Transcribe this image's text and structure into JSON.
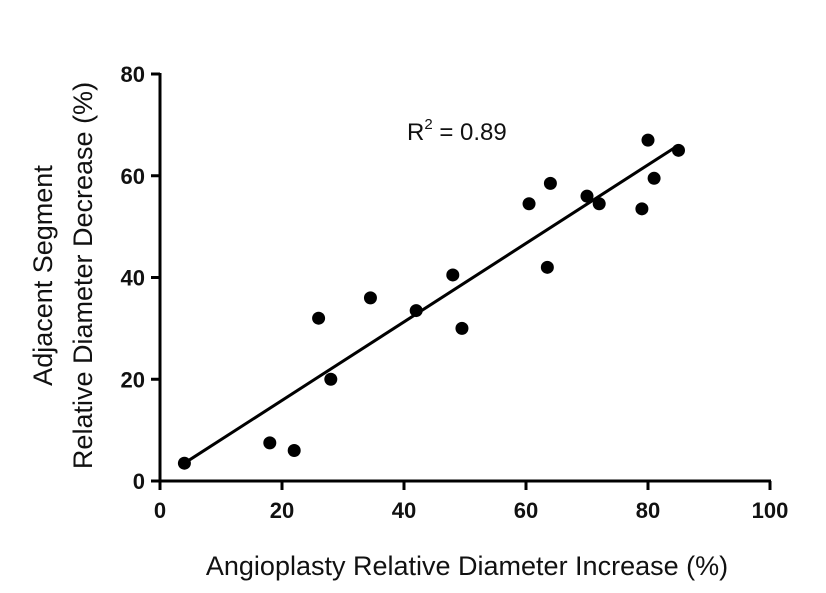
{
  "chart_data": {
    "type": "scatter",
    "title": "",
    "xlabel": "Angioplasty Relative Diameter Increase (%)",
    "ylabel": [
      "Adjacent Segment",
      "Relative Diameter Decrease (%)"
    ],
    "xlim": [
      0,
      100
    ],
    "ylim": [
      0,
      80
    ],
    "x_ticks": [
      "0",
      "20",
      "40",
      "60",
      "80",
      "100"
    ],
    "y_ticks": [
      "0",
      "20",
      "40",
      "60",
      "80"
    ],
    "grid": false,
    "annotation": {
      "base": "R",
      "superscript": "2",
      "rest": " = 0.89"
    },
    "points": [
      {
        "x": 4,
        "y": 3.5
      },
      {
        "x": 18,
        "y": 7.5
      },
      {
        "x": 22,
        "y": 6
      },
      {
        "x": 26,
        "y": 32
      },
      {
        "x": 28,
        "y": 20
      },
      {
        "x": 34.5,
        "y": 36
      },
      {
        "x": 42,
        "y": 33.5
      },
      {
        "x": 48,
        "y": 40.5
      },
      {
        "x": 49.5,
        "y": 30
      },
      {
        "x": 60.5,
        "y": 54.5
      },
      {
        "x": 63.5,
        "y": 42
      },
      {
        "x": 64,
        "y": 58.5
      },
      {
        "x": 70,
        "y": 56
      },
      {
        "x": 72,
        "y": 54.5
      },
      {
        "x": 79,
        "y": 53.5
      },
      {
        "x": 80,
        "y": 67
      },
      {
        "x": 81,
        "y": 59.5
      },
      {
        "x": 85,
        "y": 65
      }
    ],
    "fit_line": {
      "x": [
        4,
        85
      ],
      "y": [
        3.5,
        66
      ]
    },
    "colors": {
      "point": "#000000",
      "line": "#000000",
      "axis": "#000000"
    }
  }
}
